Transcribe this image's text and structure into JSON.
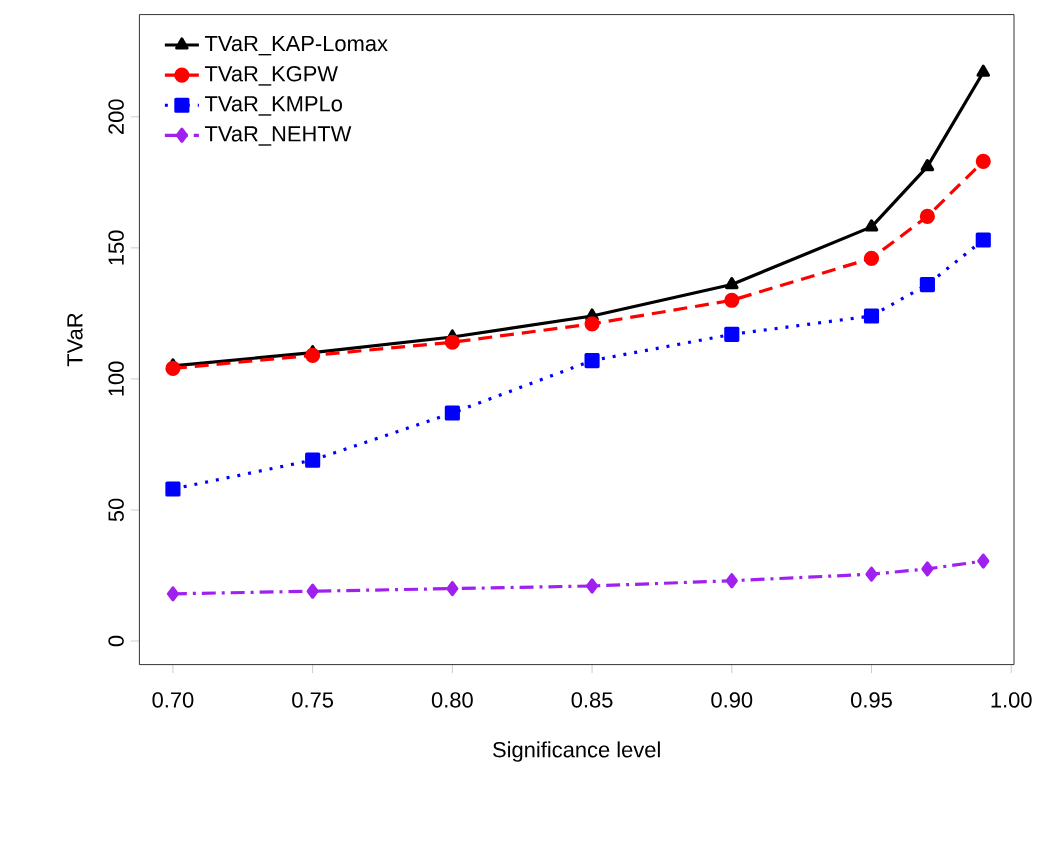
{
  "chart_data": {
    "type": "line",
    "xlabel": "Significance level",
    "ylabel": "TVaR",
    "x": [
      0.7,
      0.75,
      0.8,
      0.85,
      0.9,
      0.95,
      0.97,
      0.99
    ],
    "series": [
      {
        "name": "TVaR_KAP-Lomax",
        "color": "#000000",
        "marker": "triangle",
        "line_style": "solid",
        "values": [
          105,
          110,
          116,
          124,
          136,
          158,
          181,
          217
        ]
      },
      {
        "name": "TVaR_KGPW",
        "color": "#ff0000",
        "marker": "circle",
        "line_style": "dashed",
        "values": [
          104,
          109,
          114,
          121,
          130,
          146,
          162,
          183
        ]
      },
      {
        "name": "TVaR_KMPLo",
        "color": "#0000ff",
        "marker": "square",
        "line_style": "dotted",
        "values": [
          58,
          69,
          87,
          107,
          117,
          124,
          136,
          153
        ]
      },
      {
        "name": "TVaR_NEHTW",
        "color": "#a020f0",
        "marker": "diamond",
        "line_style": "dashdot",
        "values": [
          18,
          19,
          20,
          21,
          23,
          25.5,
          27.5,
          30.5
        ]
      }
    ],
    "xlim": [
      0.688,
      1.001
    ],
    "ylim": [
      -9,
      239
    ],
    "xticks": [
      {
        "value": 0.7,
        "label": "0.70"
      },
      {
        "value": 0.75,
        "label": "0.75"
      },
      {
        "value": 0.8,
        "label": "0.80"
      },
      {
        "value": 0.85,
        "label": "0.85"
      },
      {
        "value": 0.9,
        "label": "0.90"
      },
      {
        "value": 0.95,
        "label": "0.95"
      },
      {
        "value": 1.0,
        "label": "1.00"
      }
    ],
    "yticks": [
      0,
      50,
      100,
      150,
      200
    ],
    "grid": false,
    "legend": "top left"
  }
}
